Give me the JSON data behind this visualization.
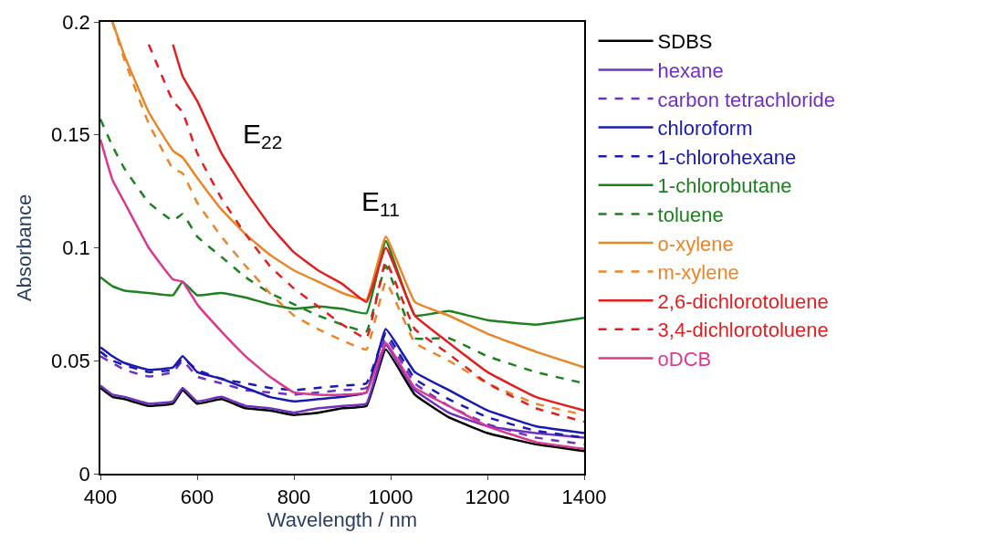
{
  "chart_data": {
    "type": "line",
    "xlabel": "Wavelength / nm",
    "ylabel": "Absorbance",
    "x": [
      400,
      425,
      450,
      500,
      550,
      570,
      600,
      650,
      700,
      750,
      800,
      850,
      900,
      950,
      990,
      1050,
      1120,
      1200,
      1300,
      1400
    ],
    "xlim": [
      400,
      1400
    ],
    "xticks": [
      400,
      600,
      800,
      1000,
      1200,
      1400
    ],
    "ylim": [
      0,
      0.2
    ],
    "yticks": [
      0,
      0.05,
      0.1,
      0.15,
      0.2
    ],
    "legend": "right",
    "marker": "none",
    "annotations": [
      "E$_{22}$",
      "E$_{11}$"
    ],
    "series": [
      {
        "name": "SDBS",
        "color": "#000000",
        "line_style": "solid",
        "values": [
          0.038,
          0.034,
          0.033,
          0.03,
          0.031,
          0.037,
          0.031,
          0.033,
          0.029,
          0.028,
          0.026,
          0.027,
          0.029,
          0.03,
          0.055,
          0.035,
          0.025,
          0.018,
          0.013,
          0.01
        ]
      },
      {
        "name": "hexane",
        "color": "#7030c0",
        "line_style": "solid",
        "values": [
          0.039,
          0.035,
          0.034,
          0.031,
          0.032,
          0.038,
          0.032,
          0.034,
          0.03,
          0.029,
          0.027,
          0.029,
          0.03,
          0.031,
          0.057,
          0.037,
          0.027,
          0.021,
          0.018,
          0.016
        ]
      },
      {
        "name": "carbon tetrachloride",
        "color": "#7030c0",
        "line_style": "dashed",
        "values": [
          0.052,
          0.049,
          0.046,
          0.043,
          0.045,
          0.05,
          0.043,
          0.04,
          0.037,
          0.036,
          0.035,
          0.036,
          0.037,
          0.038,
          0.06,
          0.04,
          0.03,
          0.022,
          0.016,
          0.013
        ]
      },
      {
        "name": "chloroform",
        "color": "#1a1ab0",
        "line_style": "solid",
        "values": [
          0.056,
          0.052,
          0.049,
          0.046,
          0.047,
          0.052,
          0.045,
          0.042,
          0.038,
          0.034,
          0.032,
          0.033,
          0.034,
          0.036,
          0.064,
          0.045,
          0.037,
          0.028,
          0.021,
          0.018
        ]
      },
      {
        "name": "1-chlorohexane",
        "color": "#1a1ab0",
        "line_style": "dashed",
        "values": [
          0.054,
          0.05,
          0.048,
          0.045,
          0.046,
          0.051,
          0.046,
          0.042,
          0.04,
          0.038,
          0.037,
          0.038,
          0.039,
          0.04,
          0.062,
          0.042,
          0.033,
          0.025,
          0.019,
          0.016
        ]
      },
      {
        "name": "1-chlorobutane",
        "color": "#1e8020",
        "line_style": "solid",
        "values": [
          0.087,
          0.083,
          0.081,
          0.08,
          0.079,
          0.085,
          0.079,
          0.08,
          0.078,
          0.075,
          0.073,
          0.074,
          0.073,
          0.071,
          0.103,
          0.07,
          0.072,
          0.068,
          0.066,
          0.069
        ]
      },
      {
        "name": "toluene",
        "color": "#1e8020",
        "line_style": "dashed",
        "values": [
          0.157,
          0.145,
          0.135,
          0.12,
          0.112,
          0.115,
          0.105,
          0.096,
          0.087,
          0.08,
          0.075,
          0.07,
          0.066,
          0.063,
          0.092,
          0.06,
          0.06,
          0.052,
          0.045,
          0.04
        ]
      },
      {
        "name": "o-xylene",
        "color": "#e8862a",
        "line_style": "solid",
        "values": [
          null,
          0.2,
          0.185,
          0.16,
          0.143,
          0.14,
          0.131,
          0.117,
          0.106,
          0.097,
          0.09,
          0.085,
          0.08,
          0.077,
          0.105,
          0.076,
          0.07,
          0.062,
          0.054,
          0.047
        ]
      },
      {
        "name": "m-xylene",
        "color": "#e8862a",
        "line_style": "dashed",
        "values": [
          null,
          0.2,
          0.183,
          0.155,
          0.135,
          0.133,
          0.12,
          0.105,
          0.092,
          0.08,
          0.07,
          0.064,
          0.059,
          0.055,
          0.085,
          0.058,
          0.05,
          0.04,
          0.031,
          0.026
        ]
      },
      {
        "name": "2,6-dichlorotoluene",
        "color": "#e02020",
        "line_style": "solid",
        "values": [
          null,
          null,
          null,
          null,
          0.19,
          0.176,
          0.165,
          0.142,
          0.125,
          0.11,
          0.098,
          0.09,
          0.084,
          0.076,
          0.1,
          0.07,
          0.058,
          0.045,
          0.034,
          0.028
        ]
      },
      {
        "name": "3,4-dichlorotoluene",
        "color": "#e02020",
        "line_style": "dashed",
        "values": [
          null,
          null,
          null,
          0.19,
          0.165,
          0.16,
          0.142,
          0.122,
          0.106,
          0.092,
          0.082,
          0.074,
          0.066,
          0.06,
          0.094,
          0.064,
          0.053,
          0.04,
          0.029,
          0.023
        ]
      },
      {
        "name": "oDCB",
        "color": "#d83a90",
        "line_style": "solid",
        "values": [
          0.148,
          0.13,
          0.12,
          0.1,
          0.086,
          0.085,
          0.075,
          0.063,
          0.052,
          0.043,
          0.036,
          0.035,
          0.035,
          0.036,
          0.058,
          0.038,
          0.03,
          0.021,
          0.014,
          0.011
        ]
      }
    ]
  }
}
